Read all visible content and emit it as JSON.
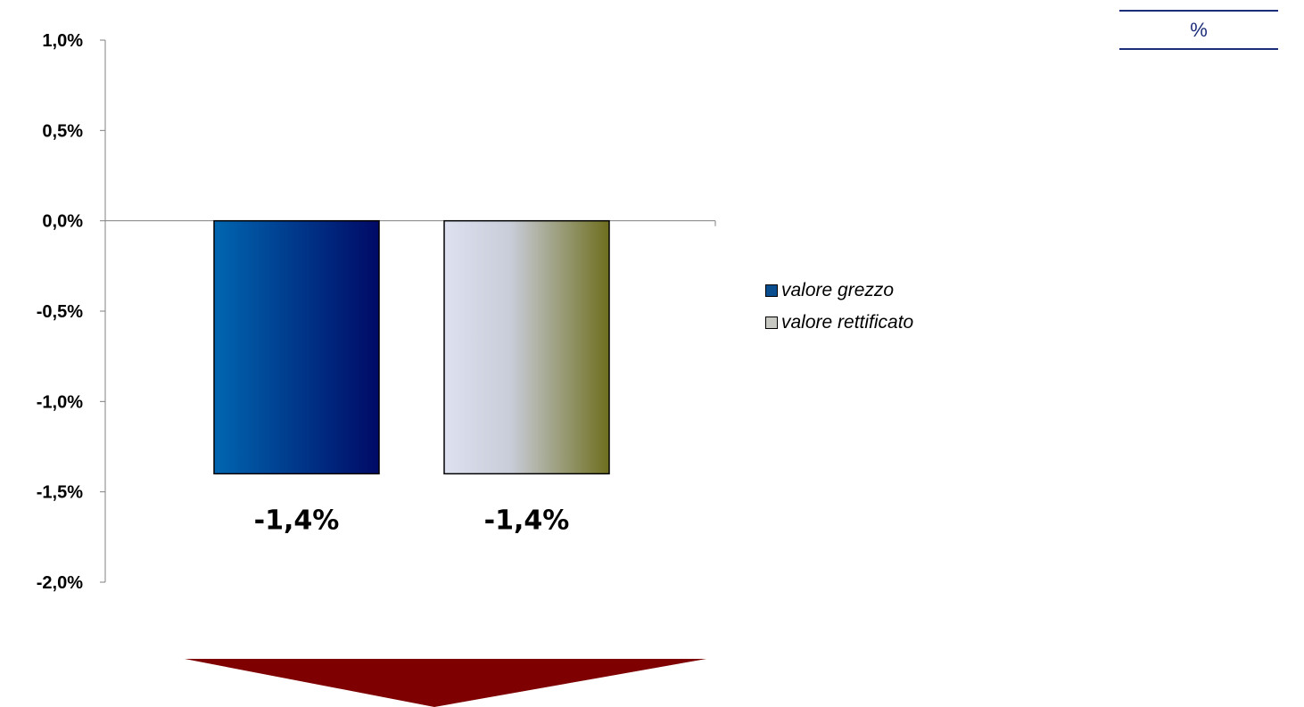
{
  "unit_label": "%",
  "colors": {
    "series_1_gradient": [
      "#0066b0",
      "#000a66"
    ],
    "series_2_gradient": [
      "#dde1f0",
      "#c9cdd9",
      "#6e6e1e"
    ],
    "arrow": "#7f0000",
    "unit_rule": "#1c2d7a"
  },
  "legend": {
    "items": [
      {
        "label": "valore grezzo",
        "swatch": "#0b4e8f"
      },
      {
        "label": "valore rettificato",
        "swatch": "#c7c9c2"
      }
    ]
  },
  "chart_data": {
    "type": "bar",
    "title": "",
    "xlabel": "",
    "ylabel": "",
    "categories": [
      ""
    ],
    "series": [
      {
        "name": "valore grezzo",
        "values": [
          -1.4
        ],
        "label": "-1,4%"
      },
      {
        "name": "valore rettificato",
        "values": [
          -1.4
        ],
        "label": "-1,4%"
      }
    ],
    "ylim": [
      -2.0,
      1.0
    ],
    "yticks": [
      1.0,
      0.5,
      0.0,
      -0.5,
      -1.0,
      -1.5,
      -2.0
    ],
    "ytick_labels": [
      "1,0%",
      "0,5%",
      "0,0%",
      "-0,5%",
      "-1,0%",
      "-1,5%",
      "-2,0%"
    ],
    "grid": false,
    "legend_position": "right"
  },
  "annotation": {
    "arrow_direction": "down"
  }
}
